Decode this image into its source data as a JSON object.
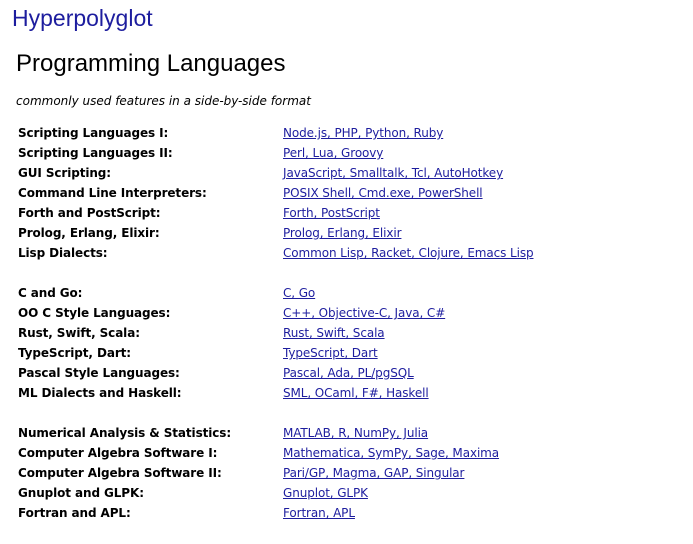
{
  "header": {
    "site_title": "Hyperpolyglot",
    "page_title": "Programming Languages",
    "subtitle": "commonly used features in a side-by-side format"
  },
  "colors": {
    "link": "#1d1d9e",
    "text": "#000000",
    "background": "#ffffff"
  },
  "groups": [
    {
      "rows": [
        {
          "label": "Scripting Languages I:",
          "links": "Node.js, PHP, Python, Ruby"
        },
        {
          "label": "Scripting Languages II:",
          "links": "Perl, Lua, Groovy"
        },
        {
          "label": "GUI Scripting:",
          "links": "JavaScript, Smalltalk, Tcl, AutoHotkey"
        },
        {
          "label": "Command Line Interpreters:",
          "links": "POSIX Shell, Cmd.exe, PowerShell"
        },
        {
          "label": "Forth and PostScript:",
          "links": "Forth, PostScript"
        },
        {
          "label": "Prolog, Erlang, Elixir:",
          "links": "Prolog, Erlang, Elixir"
        },
        {
          "label": "Lisp Dialects:",
          "links": "Common Lisp, Racket, Clojure, Emacs Lisp"
        }
      ]
    },
    {
      "rows": [
        {
          "label": "C and Go:",
          "links": "C, Go"
        },
        {
          "label": "OO C Style Languages:",
          "links": "C++, Objective-C, Java, C#"
        },
        {
          "label": "Rust, Swift, Scala:",
          "links": "Rust, Swift, Scala"
        },
        {
          "label": "TypeScript, Dart:",
          "links": "TypeScript, Dart"
        },
        {
          "label": "Pascal Style Languages:",
          "links": "Pascal, Ada, PL/pgSQL"
        },
        {
          "label": "ML Dialects and Haskell:",
          "links": "SML, OCaml, F#, Haskell"
        }
      ]
    },
    {
      "rows": [
        {
          "label": "Numerical Analysis & Statistics:",
          "links": "MATLAB, R, NumPy, Julia"
        },
        {
          "label": "Computer Algebra Software I:",
          "links": "Mathematica, SymPy, Sage, Maxima"
        },
        {
          "label": "Computer Algebra Software II:",
          "links": "Pari/GP, Magma, GAP, Singular"
        },
        {
          "label": "Gnuplot and GLPK:",
          "links": "Gnuplot, GLPK"
        },
        {
          "label": "Fortran and APL:",
          "links": "Fortran, APL"
        }
      ]
    }
  ]
}
